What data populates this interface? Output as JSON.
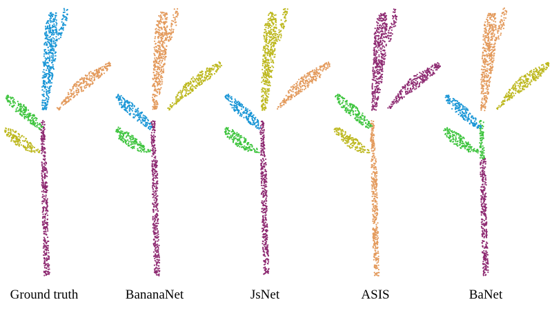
{
  "colors": {
    "stem": "#8e2b72",
    "blue": "#1a96d6",
    "orange": "#e39a5c",
    "green": "#3ec43e",
    "yellow": "#bdb81f"
  },
  "panels": [
    {
      "caption": "Ground truth",
      "segments": {
        "top": "blue",
        "rightLeaf": "orange",
        "upperLeftLeaf": "green",
        "lowerLeftLeaf": "yellow",
        "stem": "stem",
        "lowerStem": "stem"
      }
    },
    {
      "caption": "BananaNet",
      "segments": {
        "top": "orange",
        "rightLeaf": "yellow",
        "upperLeftLeaf": "blue",
        "lowerLeftLeaf": "green",
        "stem": "stem",
        "lowerStem": "stem"
      }
    },
    {
      "caption": "JsNet",
      "segments": {
        "top": "yellow",
        "rightLeaf": "orange",
        "upperLeftLeaf": "blue",
        "lowerLeftLeaf": "green",
        "stem": "stem",
        "lowerStem": "stem"
      }
    },
    {
      "caption": "ASIS",
      "segments": {
        "top": "stem",
        "rightLeaf": "stem",
        "upperLeftLeaf": "green",
        "lowerLeftLeaf": "yellow",
        "stem": "orange",
        "lowerStem": "orange"
      }
    },
    {
      "caption": "BaNet",
      "segments": {
        "top": "orange",
        "rightLeaf": "yellow",
        "upperLeftLeaf": "blue",
        "lowerLeftLeaf": "green",
        "stem": "green",
        "lowerStem": "stem"
      }
    }
  ]
}
